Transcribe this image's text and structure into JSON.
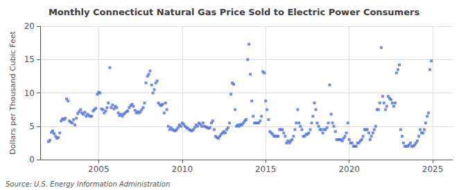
{
  "chart_data": {
    "type": "scatter",
    "title": "Monthly Connecticut Natural Gas Price Sold to Electric Power Consumers",
    "ylabel": "Dollars per Thousand Cubic Feet",
    "annotations": [
      "Source: U.S. Energy Information Administration"
    ],
    "marker": "square",
    "grid": true,
    "xlim": [
      2001.5,
      2026.2
    ],
    "xticks": [
      2005,
      2010,
      2015,
      2020,
      2025
    ],
    "ylim": [
      0,
      20
    ],
    "yticks": [
      0,
      5,
      10,
      15,
      20
    ],
    "x": [
      2002.0,
      2002.08,
      2002.17,
      2002.25,
      2002.33,
      2002.42,
      2002.5,
      2002.58,
      2002.67,
      2002.75,
      2002.83,
      2002.92,
      2003.0,
      2003.08,
      2003.17,
      2003.25,
      2003.33,
      2003.42,
      2003.5,
      2003.58,
      2003.67,
      2003.75,
      2003.83,
      2003.92,
      2004.0,
      2004.08,
      2004.17,
      2004.25,
      2004.33,
      2004.42,
      2004.5,
      2004.58,
      2004.67,
      2004.75,
      2004.83,
      2004.92,
      2005.0,
      2005.08,
      2005.17,
      2005.25,
      2005.33,
      2005.42,
      2005.5,
      2005.58,
      2005.67,
      2005.75,
      2005.83,
      2005.92,
      2006.0,
      2006.08,
      2006.17,
      2006.25,
      2006.33,
      2006.42,
      2006.5,
      2006.58,
      2006.67,
      2006.75,
      2006.83,
      2006.92,
      2007.0,
      2007.08,
      2007.17,
      2007.25,
      2007.33,
      2007.42,
      2007.5,
      2007.58,
      2007.67,
      2007.75,
      2007.83,
      2007.92,
      2008.0,
      2008.08,
      2008.17,
      2008.25,
      2008.33,
      2008.42,
      2008.5,
      2008.58,
      2008.67,
      2008.75,
      2008.83,
      2008.92,
      2009.0,
      2009.08,
      2009.17,
      2009.25,
      2009.33,
      2009.42,
      2009.5,
      2009.58,
      2009.67,
      2009.75,
      2009.83,
      2009.92,
      2010.0,
      2010.08,
      2010.17,
      2010.25,
      2010.33,
      2010.42,
      2010.5,
      2010.58,
      2010.67,
      2010.75,
      2010.83,
      2010.92,
      2011.0,
      2011.08,
      2011.17,
      2011.25,
      2011.33,
      2011.42,
      2011.5,
      2011.58,
      2011.67,
      2011.75,
      2011.83,
      2011.92,
      2012.0,
      2012.08,
      2012.17,
      2012.25,
      2012.33,
      2012.42,
      2012.5,
      2012.58,
      2012.67,
      2012.75,
      2012.83,
      2012.92,
      2013.0,
      2013.08,
      2013.17,
      2013.25,
      2013.33,
      2013.42,
      2013.5,
      2013.58,
      2013.67,
      2013.75,
      2013.83,
      2013.92,
      2014.0,
      2014.08,
      2014.17,
      2014.25,
      2014.33,
      2014.42,
      2014.5,
      2014.58,
      2014.67,
      2014.75,
      2014.83,
      2014.92,
      2015.0,
      2015.08,
      2015.17,
      2015.25,
      2015.33,
      2015.42,
      2015.5,
      2015.58,
      2015.67,
      2015.75,
      2015.83,
      2015.92,
      2016.0,
      2016.08,
      2016.17,
      2016.25,
      2016.33,
      2016.42,
      2016.5,
      2016.58,
      2016.67,
      2016.75,
      2016.83,
      2016.92,
      2017.0,
      2017.08,
      2017.17,
      2017.25,
      2017.33,
      2017.42,
      2017.5,
      2017.58,
      2017.67,
      2017.75,
      2017.83,
      2017.92,
      2018.0,
      2018.08,
      2018.17,
      2018.25,
      2018.33,
      2018.42,
      2018.5,
      2018.58,
      2018.67,
      2018.75,
      2018.83,
      2018.92,
      2019.0,
      2019.08,
      2019.17,
      2019.25,
      2019.33,
      2019.42,
      2019.5,
      2019.58,
      2019.67,
      2019.75,
      2019.83,
      2019.92,
      2020.0,
      2020.08,
      2020.17,
      2020.25,
      2020.33,
      2020.42,
      2020.5,
      2020.58,
      2020.67,
      2020.75,
      2020.83,
      2020.92,
      2021.0,
      2021.08,
      2021.17,
      2021.25,
      2021.33,
      2021.42,
      2021.5,
      2021.58,
      2021.67,
      2021.75,
      2021.83,
      2021.92,
      2022.0,
      2022.08,
      2022.17,
      2022.25,
      2022.33,
      2022.42,
      2022.5,
      2022.58,
      2022.67,
      2022.75,
      2022.83,
      2022.92,
      2023.0,
      2023.08,
      2023.17,
      2023.25,
      2023.33,
      2023.42,
      2023.5,
      2023.58,
      2023.67,
      2023.75,
      2023.83,
      2023.92,
      2024.0,
      2024.08,
      2024.17,
      2024.25,
      2024.33,
      2024.42,
      2024.5,
      2024.58,
      2024.67,
      2024.75,
      2024.83,
      2024.92
    ],
    "values": [
      2.7,
      2.9,
      4.1,
      4.3,
      3.9,
      3.5,
      3.2,
      3.3,
      4.0,
      5.8,
      6.1,
      6.0,
      6.2,
      9.1,
      8.8,
      5.8,
      5.6,
      5.5,
      6.0,
      5.2,
      6.2,
      6.9,
      7.2,
      7.5,
      7.0,
      6.8,
      7.1,
      6.5,
      6.8,
      6.6,
      6.5,
      6.5,
      7.3,
      7.5,
      7.7,
      9.8,
      10.1,
      10.0,
      7.6,
      7.5,
      7.0,
      7.3,
      7.8,
      8.5,
      13.8,
      7.8,
      8.2,
      7.6,
      8.0,
      7.8,
      7.0,
      6.6,
      6.8,
      6.5,
      6.8,
      7.0,
      7.2,
      7.3,
      7.8,
      8.1,
      8.3,
      8.0,
      7.4,
      7.0,
      7.2,
      7.0,
      7.2,
      7.5,
      7.8,
      8.5,
      11.5,
      12.5,
      12.8,
      13.3,
      11.2,
      10.0,
      10.5,
      11.5,
      11.8,
      8.5,
      8.2,
      8.1,
      8.3,
      7.0,
      8.5,
      7.5,
      5.0,
      4.5,
      4.8,
      4.5,
      4.4,
      4.3,
      4.5,
      4.8,
      5.2,
      5.0,
      5.5,
      5.3,
      5.0,
      4.8,
      4.7,
      4.5,
      4.4,
      4.3,
      4.5,
      4.8,
      5.2,
      5.0,
      5.5,
      5.3,
      5.0,
      5.5,
      5.0,
      4.9,
      4.8,
      4.7,
      4.8,
      5.5,
      5.8,
      4.5,
      3.5,
      3.3,
      3.2,
      3.5,
      3.8,
      4.0,
      4.2,
      4.0,
      4.5,
      4.8,
      5.5,
      9.8,
      11.5,
      11.3,
      7.5,
      5.0,
      5.2,
      5.0,
      5.3,
      5.2,
      5.5,
      5.8,
      6.0,
      15.0,
      17.3,
      12.8,
      8.8,
      6.5,
      5.5,
      5.5,
      5.5,
      5.5,
      5.8,
      6.5,
      13.2,
      13.0,
      8.8,
      7.5,
      6.0,
      4.2,
      4.0,
      3.8,
      3.5,
      3.5,
      3.5,
      3.5,
      4.5,
      4.5,
      4.5,
      4.0,
      3.5,
      2.5,
      2.8,
      2.5,
      2.8,
      3.0,
      3.5,
      4.5,
      5.5,
      7.5,
      5.5,
      5.0,
      4.5,
      3.5,
      3.5,
      3.8,
      3.8,
      4.0,
      4.5,
      5.5,
      6.5,
      8.5,
      7.5,
      5.5,
      5.0,
      4.5,
      4.5,
      4.0,
      4.5,
      4.5,
      4.8,
      5.5,
      11.2,
      6.8,
      5.5,
      5.0,
      4.2,
      3.0,
      3.0,
      3.0,
      3.0,
      2.8,
      3.2,
      3.5,
      4.0,
      5.5,
      3.0,
      2.5,
      2.5,
      2.0,
      2.0,
      2.0,
      2.5,
      2.5,
      2.8,
      3.0,
      3.5,
      4.5,
      4.5,
      4.5,
      4.0,
      3.0,
      3.5,
      4.0,
      4.5,
      5.0,
      7.5,
      7.5,
      8.5,
      16.8,
      9.5,
      8.5,
      7.5,
      8.0,
      9.5,
      9.2,
      9.0,
      8.5,
      8.0,
      8.5,
      13.0,
      13.5,
      14.2,
      4.5,
      3.5,
      2.5,
      2.0,
      2.0,
      2.0,
      2.2,
      2.5,
      2.0,
      2.0,
      2.2,
      2.5,
      2.8,
      3.5,
      4.5,
      4.0,
      4.0,
      4.5,
      5.5,
      6.5,
      7.0,
      13.5,
      14.8
    ]
  }
}
